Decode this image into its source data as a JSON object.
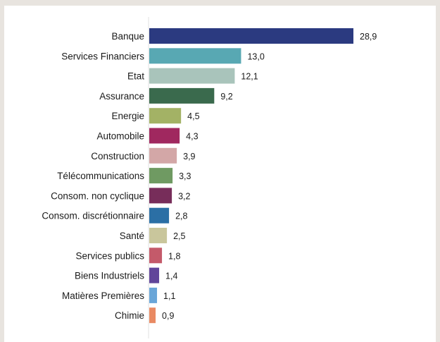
{
  "chart_data": {
    "type": "bar",
    "orientation": "horizontal",
    "title": "",
    "xlabel": "",
    "ylabel": "",
    "xlim": [
      0,
      28.9
    ],
    "grid": false,
    "legend": "none",
    "categories": [
      "Banque",
      "Services Financiers",
      "Etat",
      "Assurance",
      "Energie",
      "Automobile",
      "Construction",
      "Télécommunications",
      "Consom. non cyclique",
      "Consom. discrétionnaire",
      "Santé",
      "Services publics",
      "Biens Industriels",
      "Matières Premières",
      "Chimie"
    ],
    "values": [
      28.9,
      13.0,
      12.1,
      9.2,
      4.5,
      4.3,
      3.9,
      3.3,
      3.2,
      2.8,
      2.5,
      1.8,
      1.4,
      1.1,
      0.9
    ],
    "value_labels": [
      "28,9",
      "13,0",
      "12,1",
      "9,2",
      "4,5",
      "4,3",
      "3,9",
      "3,3",
      "3,2",
      "2,8",
      "2,5",
      "1,8",
      "1,4",
      "1,1",
      "0,9"
    ],
    "colors": [
      "#2b3a80",
      "#58a8b3",
      "#a9c4bb",
      "#3a6a4d",
      "#a3b265",
      "#a0285f",
      "#d3a7a7",
      "#6f9a62",
      "#772d5a",
      "#2b6fa5",
      "#c9c69c",
      "#c45a6a",
      "#61459a",
      "#6aa6d8",
      "#e98a63"
    ],
    "axis_color": "#e2e2e2"
  }
}
